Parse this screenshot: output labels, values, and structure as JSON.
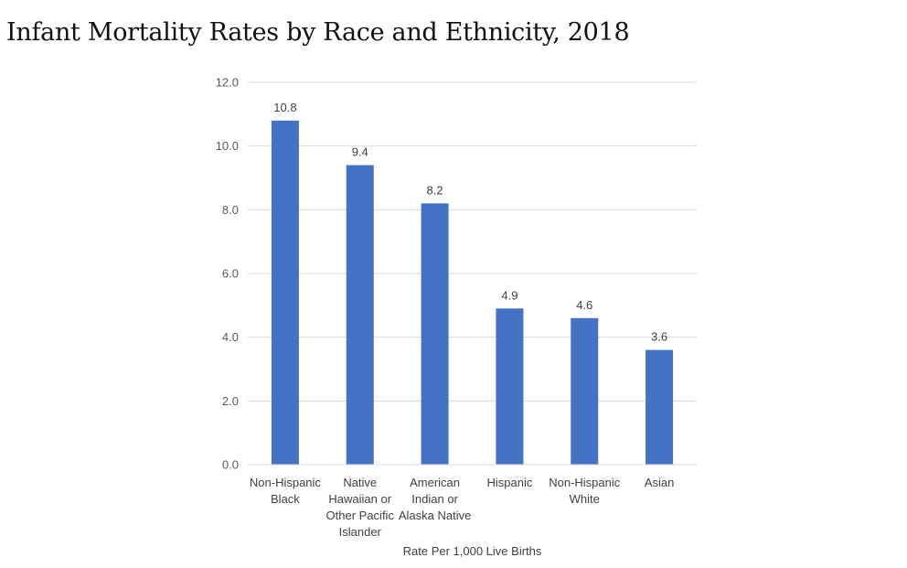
{
  "chart_data": {
    "type": "bar",
    "title": "Infant Mortality Rates by Race and Ethnicity, 2018",
    "xlabel": "Rate Per 1,000 Live Births",
    "ylabel": "",
    "categories": [
      [
        "Non-Hispanic",
        "Black"
      ],
      [
        "Native",
        "Hawaiian or",
        "Other Pacific",
        "Islander"
      ],
      [
        "American",
        "Indian or",
        "Alaska Native"
      ],
      [
        "Hispanic"
      ],
      [
        "Non-Hispanic",
        "White"
      ],
      [
        "Asian"
      ]
    ],
    "values": [
      10.8,
      9.4,
      8.2,
      4.9,
      4.6,
      3.6
    ],
    "data_labels": [
      "10.8",
      "9.4",
      "8.2",
      "4.9",
      "4.6",
      "3.6"
    ],
    "ylim": [
      0,
      12
    ],
    "yticks": [
      "0.0",
      "2.0",
      "4.0",
      "6.0",
      "8.0",
      "10.0",
      "12.0"
    ],
    "grid": true,
    "legend": "none",
    "colors": {
      "bar": "#4472c4",
      "grid": "#d9d9d9"
    }
  }
}
